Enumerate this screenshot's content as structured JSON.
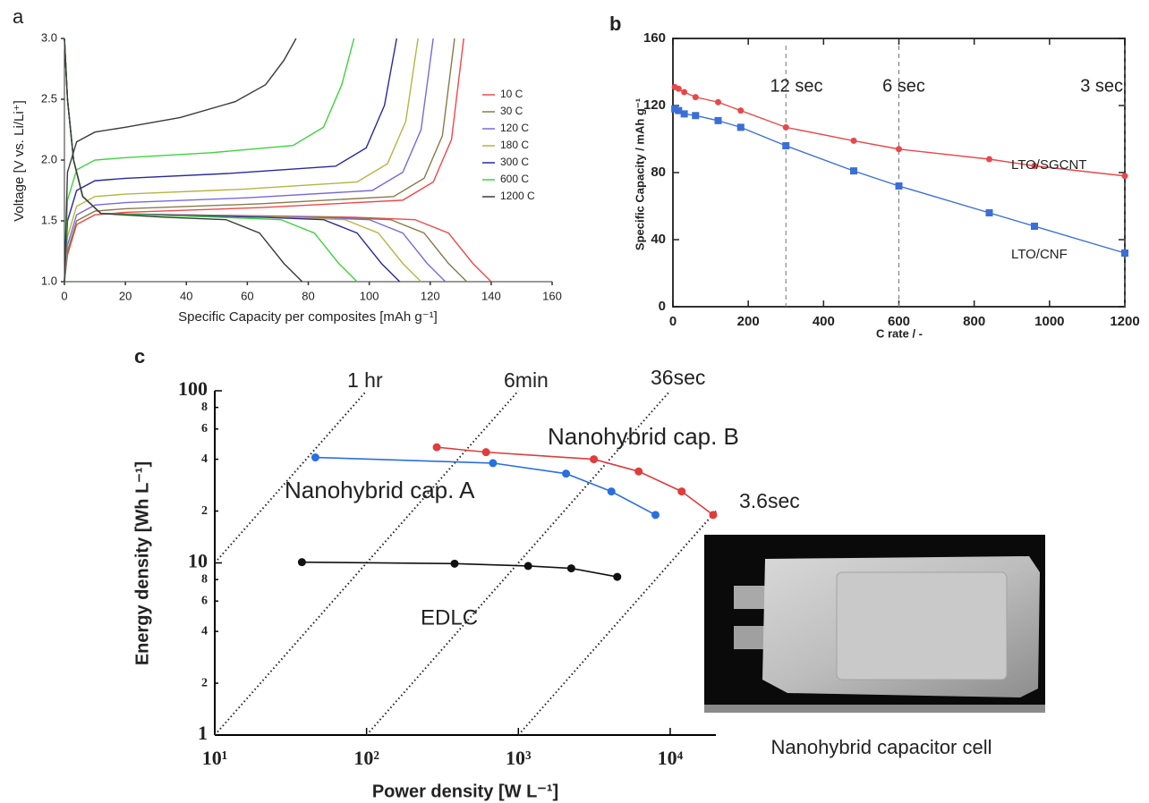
{
  "chart_data": [
    {
      "type": "line",
      "panel_label": "a",
      "xlabel": "Specific Capacity per composites [mAh g⁻¹]",
      "ylabel": "Voltage [V vs. Li/Li⁺]",
      "xlim": [
        0,
        160
      ],
      "ylim": [
        1,
        3
      ],
      "xticks": [
        0,
        20,
        40,
        60,
        80,
        100,
        120,
        140,
        160
      ],
      "yticks": [
        {
          "value": 1,
          "label": "1.0"
        },
        {
          "value": 1.5,
          "label": "1.5"
        },
        {
          "value": 2,
          "label": "2.0"
        },
        {
          "value": 2.5,
          "label": "2.5"
        },
        {
          "value": 3,
          "label": "3.0"
        }
      ],
      "legend": "upper right",
      "series": [
        {
          "name": "10 C",
          "color": "#f0484a",
          "curves": [
            {
              "x": [
                0,
                1,
                4,
                10,
                20,
                65,
                111,
                121,
                127,
                131
              ],
              "values": [
                1.0,
                1.22,
                1.47,
                1.55,
                1.57,
                1.61,
                1.67,
                1.82,
                2.17,
                3.0
              ]
            },
            {
              "x": [
                0,
                1,
                3,
                6,
                12,
                95,
                115,
                126,
                134,
                140
              ],
              "values": [
                3.0,
                2.5,
                2.0,
                1.7,
                1.56,
                1.53,
                1.51,
                1.4,
                1.15,
                1.0
              ]
            }
          ]
        },
        {
          "name": "30 C",
          "color": "#8a7a4a",
          "curves": [
            {
              "x": [
                0,
                1,
                4,
                10,
                20,
                64,
                108,
                118,
                124,
                128
              ],
              "values": [
                1.0,
                1.25,
                1.5,
                1.58,
                1.6,
                1.64,
                1.7,
                1.85,
                2.2,
                3.0
              ]
            },
            {
              "x": [
                0,
                1,
                3,
                6,
                12,
                87,
                107,
                118,
                126,
                132
              ],
              "values": [
                3.0,
                2.5,
                2.0,
                1.7,
                1.56,
                1.53,
                1.51,
                1.4,
                1.15,
                1.0
              ]
            }
          ]
        },
        {
          "name": "120 C",
          "color": "#7a6ad8",
          "curves": [
            {
              "x": [
                0,
                1,
                4,
                10,
                20,
                60,
                101,
                111,
                117,
                121
              ],
              "values": [
                1.0,
                1.3,
                1.55,
                1.63,
                1.65,
                1.69,
                1.75,
                1.9,
                2.25,
                3.0
              ]
            },
            {
              "x": [
                0,
                1,
                3,
                6,
                12,
                80,
                100,
                111,
                119,
                125
              ],
              "values": [
                3.0,
                2.5,
                2.0,
                1.7,
                1.56,
                1.53,
                1.51,
                1.4,
                1.15,
                1.0
              ]
            }
          ]
        },
        {
          "name": "180 C",
          "color": "#b9b343",
          "curves": [
            {
              "x": [
                0,
                1,
                4,
                10,
                20,
                58,
                96,
                106,
                112,
                116
              ],
              "values": [
                1.0,
                1.37,
                1.62,
                1.7,
                1.72,
                1.76,
                1.82,
                1.97,
                2.32,
                3.0
              ]
            },
            {
              "x": [
                0,
                1,
                3,
                6,
                12,
                72,
                92,
                103,
                111,
                117
              ],
              "values": [
                3.0,
                2.5,
                2.0,
                1.7,
                1.56,
                1.53,
                1.51,
                1.4,
                1.15,
                1.0
              ]
            }
          ]
        },
        {
          "name": "300 C",
          "color": "#2a2a9a",
          "curves": [
            {
              "x": [
                0,
                1,
                4,
                10,
                20,
                54,
                89,
                99,
                105,
                109
              ],
              "values": [
                1.0,
                1.5,
                1.75,
                1.83,
                1.85,
                1.89,
                1.95,
                2.1,
                2.45,
                3.0
              ]
            },
            {
              "x": [
                0,
                1,
                3,
                6,
                12,
                65,
                85,
                96,
                104,
                110
              ],
              "values": [
                3.0,
                2.5,
                2.0,
                1.7,
                1.56,
                1.53,
                1.51,
                1.4,
                1.15,
                1.0
              ]
            }
          ]
        },
        {
          "name": "600 C",
          "color": "#3fd23f",
          "curves": [
            {
              "x": [
                0,
                1,
                4,
                10,
                20,
                48,
                75,
                85,
                91,
                95
              ],
              "values": [
                1.0,
                1.67,
                1.92,
                2.0,
                2.02,
                2.06,
                2.12,
                2.27,
                2.62,
                3.0
              ]
            },
            {
              "x": [
                0,
                1,
                3,
                6,
                12,
                51,
                71,
                82,
                90,
                96
              ],
              "values": [
                3.0,
                2.5,
                2.0,
                1.7,
                1.56,
                1.53,
                1.51,
                1.4,
                1.15,
                1.0
              ]
            }
          ]
        },
        {
          "name": "1200 C",
          "color": "#3a3a3a",
          "curves": [
            {
              "x": [
                0,
                1,
                4,
                10,
                20,
                38,
                56,
                66,
                72,
                76
              ],
              "values": [
                1.0,
                1.9,
                2.15,
                2.23,
                2.27,
                2.35,
                2.48,
                2.62,
                2.82,
                3.0
              ]
            },
            {
              "x": [
                0,
                1,
                3,
                6,
                12,
                33,
                53,
                64,
                72,
                78
              ],
              "values": [
                3.0,
                2.5,
                2.0,
                1.7,
                1.56,
                1.53,
                1.51,
                1.4,
                1.15,
                1.0
              ]
            }
          ]
        }
      ]
    },
    {
      "type": "line",
      "panel_label": "b",
      "xlabel": "C rate / -",
      "ylabel": "Specific Capacity / mAh g⁻¹",
      "xlim": [
        0,
        1200
      ],
      "ylim": [
        0,
        160
      ],
      "xticks": [
        0,
        200,
        400,
        600,
        800,
        1000,
        1200
      ],
      "yticks": [
        0,
        40,
        80,
        120,
        160
      ],
      "reference_lines": [
        {
          "x": 300,
          "label": "12 sec"
        },
        {
          "x": 600,
          "label": "6 sec"
        },
        {
          "x": 1200,
          "label": "3 sec"
        }
      ],
      "series": [
        {
          "name": "LTO/SGCNT",
          "color": "#e8484a",
          "marker": "circle",
          "x": [
            5,
            15,
            30,
            60,
            120,
            180,
            300,
            480,
            600,
            840,
            960,
            1200
          ],
          "values": [
            131,
            130,
            128,
            125,
            122,
            117,
            107,
            99,
            94,
            88,
            84,
            78
          ]
        },
        {
          "name": "LTO/CNF",
          "color": "#3a6fd8",
          "marker": "square",
          "x": [
            5,
            15,
            30,
            60,
            120,
            180,
            300,
            480,
            600,
            840,
            960,
            1200
          ],
          "values": [
            118,
            117,
            115,
            114,
            111,
            107,
            96,
            81,
            72,
            56,
            48,
            32
          ]
        }
      ]
    },
    {
      "type": "line",
      "panel_label": "c",
      "xlabel": "Power density [W L⁻¹]",
      "ylabel": "Energy density [Wh L⁻¹]",
      "xlog": true,
      "ylog": true,
      "xlim": [
        10,
        20000
      ],
      "ylim": [
        1,
        100
      ],
      "xticks": [
        {
          "value": 10,
          "label": "10¹"
        },
        {
          "value": 100,
          "label": "10²"
        },
        {
          "value": 1000,
          "label": "10³"
        },
        {
          "value": 10000,
          "label": "10⁴"
        }
      ],
      "yticks": [
        1,
        2,
        4,
        6,
        8,
        10,
        {
          "value": 20,
          "label": "2"
        },
        {
          "value": 40,
          "label": "4"
        },
        {
          "value": 60,
          "label": "6"
        },
        {
          "value": 80,
          "label": "8"
        },
        100
      ],
      "guides": [
        {
          "label": "1 hr",
          "hours": 1
        },
        {
          "label": "6min",
          "hours": 0.1
        },
        {
          "label": "36sec",
          "hours": 0.01
        },
        {
          "label": "3.6sec",
          "hours": 0.001
        }
      ],
      "series": [
        {
          "name": "Nanohybrid cap. A",
          "color": "#2a6fe0",
          "x": [
            46,
            680,
            2060,
            4100,
            8000
          ],
          "values": [
            41,
            38,
            33,
            26,
            19
          ]
        },
        {
          "name": "Nanohybrid cap. B",
          "color": "#e03c3c",
          "x": [
            290,
            612,
            3140,
            6200,
            11900,
            19200
          ],
          "values": [
            47,
            44,
            40,
            34,
            26,
            19
          ]
        },
        {
          "name": "EDLC",
          "color": "#111111",
          "x": [
            37.5,
            380,
            1160,
            2230,
            4480
          ],
          "values": [
            10.1,
            9.9,
            9.6,
            9.3,
            8.3
          ]
        }
      ],
      "photo_caption": "Nanohybrid capacitor cell"
    }
  ]
}
